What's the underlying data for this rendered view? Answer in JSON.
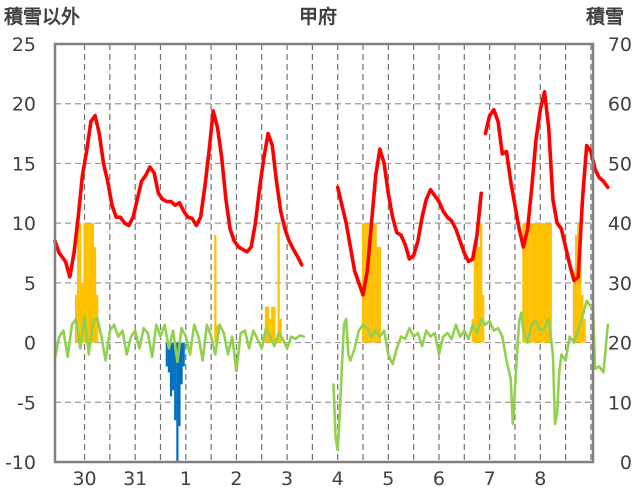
{
  "chart_data": {
    "type": "line",
    "title": "甲府",
    "y_left_label": "積雪以外",
    "y_right_label": "積雪",
    "y_left_range": [
      -10,
      25
    ],
    "y_right_range": [
      0,
      70
    ],
    "y_left_ticks": [
      "25",
      "20",
      "15",
      "10",
      "5",
      "0",
      "-5",
      "-10"
    ],
    "y_right_ticks": [
      "70",
      "60",
      "50",
      "40",
      "30",
      "20",
      "10",
      "0"
    ],
    "x_day_labels": [
      "30",
      "31",
      "1",
      "2",
      "3",
      "4",
      "5",
      "6",
      "7",
      "8"
    ],
    "x_range_hours": [
      -62,
      193
    ],
    "grid": "dashed vertical lines every 12 hours, horizontal dashed lines at each left tick",
    "colors": {
      "temperature": "#ff0000",
      "precipitation": "#ffc000",
      "temperature_change": "#92d050",
      "negative_change": "#0070c0"
    },
    "temperature": [
      [
        -62,
        8.5
      ],
      [
        -60,
        7.5
      ],
      [
        -57,
        6.8
      ],
      [
        -55,
        5.5
      ],
      [
        -53,
        7.5
      ],
      [
        -51,
        10.5
      ],
      [
        -49,
        14
      ],
      [
        -47,
        16
      ],
      [
        -45,
        18.5
      ],
      [
        -43,
        19
      ],
      [
        -41,
        17.5
      ],
      [
        -39,
        15
      ],
      [
        -37,
        13.5
      ],
      [
        -35,
        11.5
      ],
      [
        -33,
        10.5
      ],
      [
        -31,
        10.5
      ],
      [
        -29,
        10
      ],
      [
        -27,
        9.8
      ],
      [
        -25,
        10.5
      ],
      [
        -23,
        12
      ],
      [
        -21,
        13.5
      ],
      [
        -19,
        14
      ],
      [
        -17,
        14.7
      ],
      [
        -15,
        14.2
      ],
      [
        -13,
        12.5
      ],
      [
        -11,
        12
      ],
      [
        -9,
        11.8
      ],
      [
        -7,
        11.8
      ],
      [
        -5,
        11.5
      ],
      [
        -3,
        11.7
      ],
      [
        -1,
        11
      ],
      [
        1,
        10.5
      ],
      [
        3,
        10.4
      ],
      [
        5,
        9.8
      ],
      [
        7,
        10.5
      ],
      [
        9,
        13
      ],
      [
        11,
        16
      ],
      [
        13,
        19.4
      ],
      [
        15,
        18
      ],
      [
        17,
        15.5
      ],
      [
        19,
        12
      ],
      [
        21,
        9.5
      ],
      [
        23,
        8.5
      ],
      [
        25,
        8
      ],
      [
        27,
        7.8
      ],
      [
        29,
        7.6
      ],
      [
        31,
        8
      ],
      [
        33,
        10
      ],
      [
        35,
        13
      ],
      [
        37,
        15.5
      ],
      [
        39,
        17.5
      ],
      [
        41,
        16.5
      ],
      [
        43,
        13.5
      ],
      [
        45,
        11
      ],
      [
        47,
        9.5
      ],
      [
        49,
        8.5
      ],
      [
        51,
        7.8
      ],
      [
        53,
        7.2
      ],
      [
        55,
        6.5
      ],
      null,
      [
        72,
        13
      ],
      [
        74,
        11.5
      ],
      [
        76,
        10
      ],
      [
        78,
        8
      ],
      [
        80,
        6
      ],
      [
        82,
        5
      ],
      [
        84,
        4
      ],
      [
        86,
        6
      ],
      [
        88,
        10
      ],
      [
        90,
        14
      ],
      [
        92,
        16.2
      ],
      [
        94,
        15
      ],
      [
        96,
        12.5
      ],
      [
        98,
        10.5
      ],
      [
        100,
        9.2
      ],
      [
        102,
        9
      ],
      [
        104,
        8.2
      ],
      [
        106,
        7
      ],
      [
        108,
        7.3
      ],
      [
        110,
        8.5
      ],
      [
        112,
        10.5
      ],
      [
        114,
        12
      ],
      [
        116,
        12.8
      ],
      [
        118,
        12.3
      ],
      [
        120,
        11.8
      ],
      [
        122,
        11
      ],
      [
        124,
        10.5
      ],
      [
        126,
        10.2
      ],
      [
        128,
        9.5
      ],
      [
        130,
        8.5
      ],
      [
        132,
        7.5
      ],
      [
        134,
        6.8
      ],
      [
        136,
        7
      ],
      [
        138,
        9
      ],
      [
        140,
        12.5
      ],
      null,
      [
        142,
        17.5
      ],
      [
        144,
        19
      ],
      [
        146,
        19.5
      ],
      [
        148,
        18.5
      ],
      [
        150,
        15.8
      ],
      [
        152,
        16
      ],
      [
        154,
        13.5
      ],
      [
        156,
        11.5
      ],
      [
        158,
        9.5
      ],
      [
        160,
        8
      ],
      [
        162,
        9.5
      ],
      [
        164,
        13
      ],
      [
        166,
        17
      ],
      [
        168,
        19.5
      ],
      [
        170,
        21
      ],
      [
        172,
        18
      ],
      [
        174,
        12
      ],
      [
        176,
        10
      ],
      [
        178,
        9.5
      ],
      [
        180,
        8
      ],
      [
        182,
        6.5
      ],
      [
        184,
        5.2
      ],
      [
        186,
        5.5
      ],
      [
        188,
        12
      ],
      [
        190,
        16.5
      ],
      [
        192,
        16
      ],
      [
        194,
        14.5
      ],
      [
        196,
        13.8
      ],
      [
        198,
        13.5
      ],
      [
        200,
        13
      ]
    ],
    "precipitation": [
      [
        -52,
        4
      ],
      [
        -51,
        10
      ],
      [
        -50,
        10
      ],
      [
        -49,
        5
      ],
      [
        -48,
        10
      ],
      [
        -47,
        10
      ],
      [
        -46,
        10
      ],
      [
        -45,
        10
      ],
      [
        -44,
        10
      ],
      [
        -43,
        8
      ],
      [
        -42,
        4
      ],
      [
        14,
        9
      ],
      [
        15,
        1.5
      ],
      [
        38,
        3
      ],
      [
        39,
        3
      ],
      [
        40,
        2
      ],
      [
        41,
        3
      ],
      [
        42,
        3
      ],
      [
        44,
        10
      ],
      [
        45,
        2
      ],
      [
        84,
        10
      ],
      [
        85,
        10
      ],
      [
        86,
        10
      ],
      [
        87,
        10
      ],
      [
        88,
        10
      ],
      [
        89,
        10
      ],
      [
        90,
        10
      ],
      [
        91,
        8
      ],
      [
        92,
        8
      ],
      [
        136,
        2
      ],
      [
        137,
        8
      ],
      [
        138,
        10
      ],
      [
        139,
        8
      ],
      [
        140,
        10
      ],
      [
        141,
        4
      ],
      [
        160,
        10
      ],
      [
        161,
        10
      ],
      [
        162,
        10
      ],
      [
        163,
        10
      ],
      [
        164,
        10
      ],
      [
        165,
        10
      ],
      [
        166,
        10
      ],
      [
        167,
        10
      ],
      [
        168,
        10
      ],
      [
        169,
        10
      ],
      [
        170,
        10
      ],
      [
        171,
        10
      ],
      [
        172,
        10
      ],
      [
        173,
        10
      ],
      [
        184,
        6
      ],
      [
        185,
        9
      ],
      [
        186,
        10
      ],
      [
        187,
        9
      ],
      [
        188,
        4
      ],
      [
        189,
        2
      ]
    ],
    "negative_change": [
      [
        -9,
        -2
      ],
      [
        -8,
        -2.5
      ],
      [
        -7,
        -4.5
      ],
      [
        -6,
        -4
      ],
      [
        -5,
        -6.5
      ],
      [
        -4,
        -10
      ],
      [
        -3,
        -7
      ],
      [
        -2,
        -3.5
      ],
      [
        -1,
        -2
      ]
    ],
    "temperature_change": [
      [
        -62,
        -1.3
      ],
      [
        -60,
        0.5
      ],
      [
        -58,
        1
      ],
      [
        -56,
        -1.2
      ],
      [
        -54,
        1.5
      ],
      [
        -52,
        2
      ],
      [
        -50,
        -0.5
      ],
      [
        -48,
        2.2
      ],
      [
        -46,
        -1
      ],
      [
        -44,
        1.8
      ],
      [
        -42,
        2.1
      ],
      [
        -40,
        0.5
      ],
      [
        -38,
        -1.5
      ],
      [
        -36,
        1
      ],
      [
        -34,
        1.5
      ],
      [
        -32,
        0.5
      ],
      [
        -30,
        1
      ],
      [
        -28,
        -1
      ],
      [
        -26,
        0.5
      ],
      [
        -24,
        1
      ],
      [
        -22,
        -0.5
      ],
      [
        -20,
        1.2
      ],
      [
        -18,
        0.8
      ],
      [
        -16,
        -1.2
      ],
      [
        -14,
        1.5
      ],
      [
        -12,
        0.5
      ],
      [
        -10,
        1.5
      ],
      [
        -8,
        -0.5
      ],
      [
        -6,
        1
      ],
      [
        -4,
        -1.6
      ],
      [
        -2,
        1.2
      ],
      [
        0,
        0.5
      ],
      [
        2,
        -1
      ],
      [
        4,
        1.5
      ],
      [
        6,
        0.5
      ],
      [
        8,
        -1.5
      ],
      [
        10,
        1.5
      ],
      [
        12,
        0.5
      ],
      [
        14,
        -1
      ],
      [
        16,
        1.5
      ],
      [
        18,
        0.8
      ],
      [
        20,
        -1
      ],
      [
        22,
        0.5
      ],
      [
        24,
        -2.4
      ],
      [
        26,
        0.8
      ],
      [
        28,
        1
      ],
      [
        30,
        -0.5
      ],
      [
        32,
        1
      ],
      [
        34,
        0.3
      ],
      [
        36,
        -0.5
      ],
      [
        38,
        1.2
      ],
      [
        40,
        0.5
      ],
      [
        42,
        -0.3
      ],
      [
        44,
        0.8
      ],
      [
        46,
        0.3
      ],
      [
        48,
        -0.5
      ],
      [
        50,
        0.5
      ],
      [
        52,
        0.3
      ],
      [
        54,
        0.6
      ],
      [
        56,
        0.5
      ],
      null,
      [
        70,
        -3.5
      ],
      [
        71,
        -8
      ],
      [
        72,
        -9
      ],
      [
        73,
        -6
      ],
      [
        74,
        -2
      ],
      [
        75,
        1.5
      ],
      [
        76,
        2
      ],
      [
        77,
        -1
      ],
      [
        78,
        -1.5
      ],
      [
        80,
        -0.5
      ],
      [
        82,
        1
      ],
      [
        84,
        1.5
      ],
      [
        86,
        1.2
      ],
      [
        88,
        0.5
      ],
      [
        90,
        1
      ],
      [
        92,
        0.5
      ],
      [
        94,
        1
      ],
      [
        96,
        -1
      ],
      [
        98,
        -1.8
      ],
      [
        100,
        -0.5
      ],
      [
        102,
        0.5
      ],
      [
        104,
        0.3
      ],
      [
        106,
        1.2
      ],
      [
        108,
        0.5
      ],
      [
        110,
        0.8
      ],
      [
        112,
        -0.3
      ],
      [
        114,
        1
      ],
      [
        116,
        0.5
      ],
      [
        118,
        0.8
      ],
      [
        120,
        -1
      ],
      [
        122,
        0.5
      ],
      [
        124,
        0.8
      ],
      [
        126,
        0.3
      ],
      [
        128,
        1.5
      ],
      [
        130,
        0.5
      ],
      [
        132,
        1
      ],
      [
        134,
        0.3
      ],
      [
        136,
        1.5
      ],
      [
        138,
        0.8
      ],
      [
        140,
        2
      ],
      [
        142,
        1.5
      ],
      [
        144,
        1.8
      ],
      [
        146,
        1
      ],
      [
        148,
        1.2
      ],
      [
        150,
        0.5
      ],
      [
        152,
        -1.5
      ],
      [
        154,
        -3
      ],
      [
        155,
        -6.8
      ],
      [
        156,
        -4
      ],
      [
        157,
        -1
      ],
      [
        158,
        1.8
      ],
      [
        159,
        2.5
      ],
      [
        160,
        1
      ],
      [
        162,
        0
      ],
      [
        164,
        1.5
      ],
      [
        166,
        1.8
      ],
      [
        168,
        1
      ],
      [
        170,
        1.2
      ],
      [
        172,
        2
      ],
      [
        174,
        -1
      ],
      [
        175,
        -6.8
      ],
      [
        176,
        -6
      ],
      [
        177,
        -2.5
      ],
      [
        178,
        -1
      ],
      [
        180,
        -1.5
      ],
      [
        182,
        0.5
      ],
      [
        184,
        0
      ],
      [
        186,
        1
      ],
      [
        188,
        2.2
      ],
      [
        190,
        3.5
      ],
      [
        192,
        3
      ],
      [
        193,
        2.8
      ],
      [
        194,
        -2.2
      ],
      [
        196,
        -2
      ],
      [
        198,
        -2.5
      ],
      [
        200,
        1.5
      ]
    ]
  }
}
